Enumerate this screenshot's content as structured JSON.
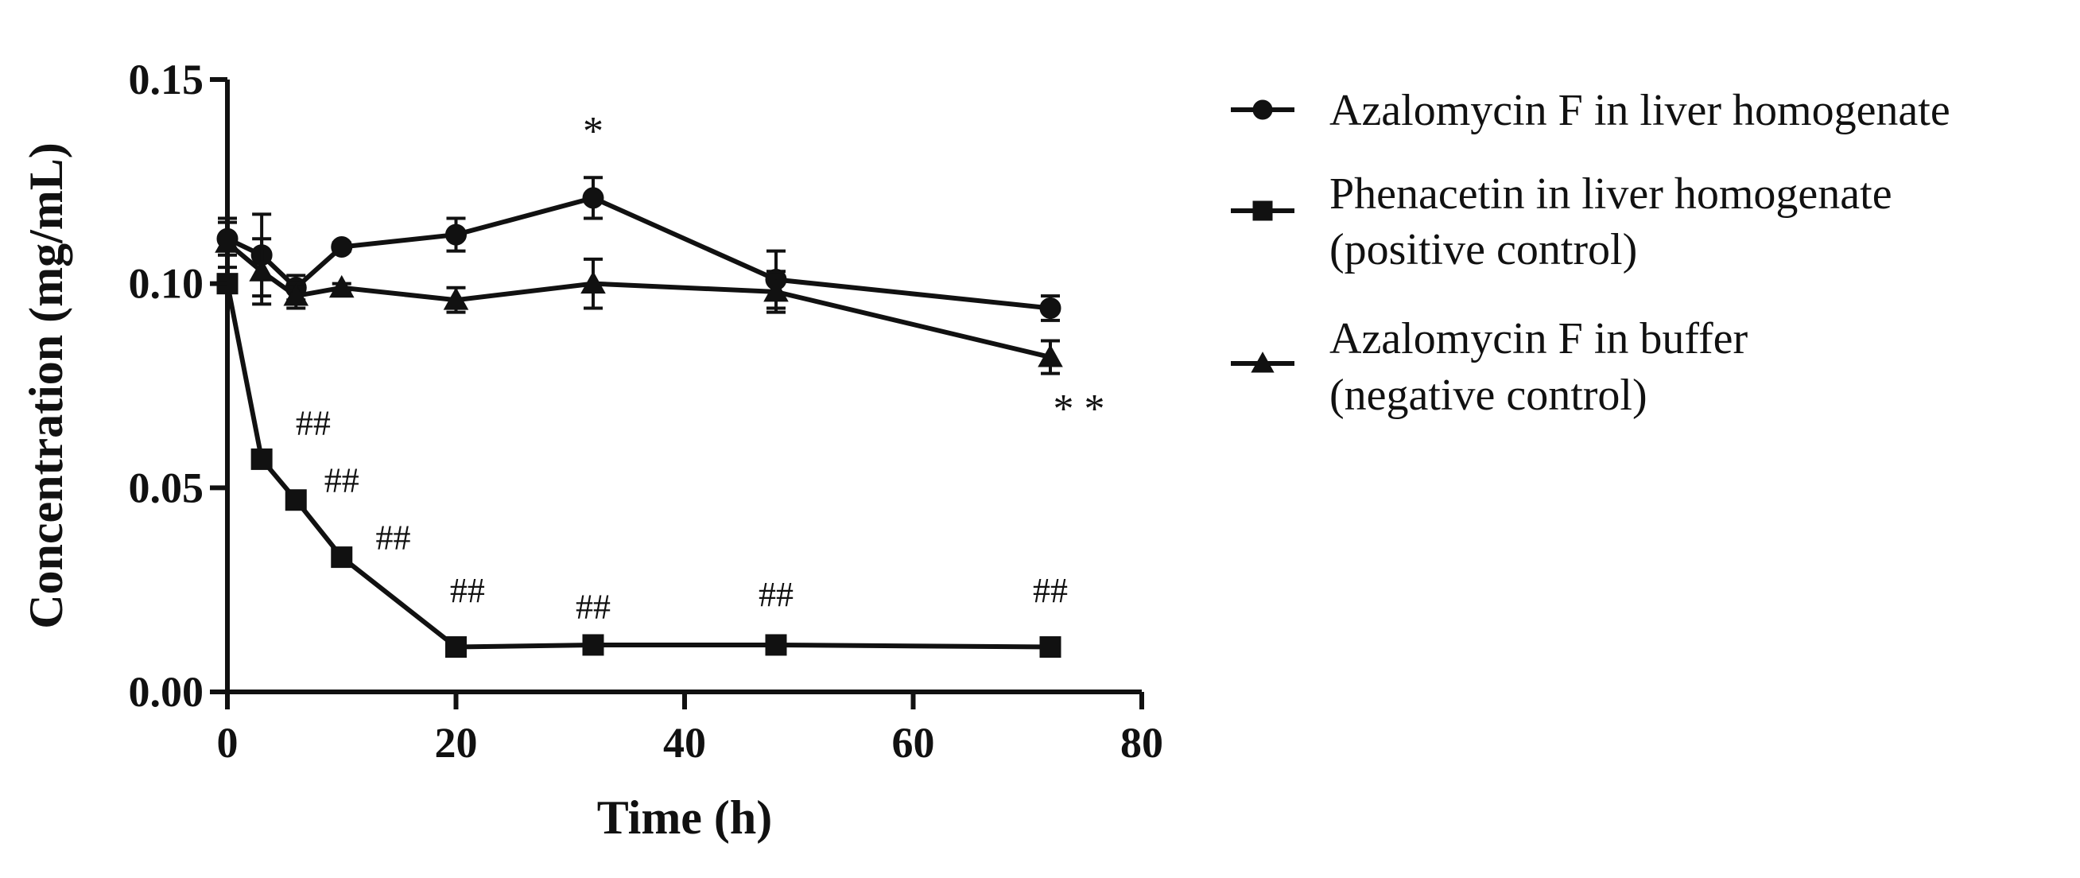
{
  "chart_data": {
    "type": "line",
    "title": "",
    "xlabel": "Time (h)",
    "ylabel": "Concentration (mg/mL)",
    "xlim": [
      0,
      80
    ],
    "ylim": [
      0,
      0.15
    ],
    "xticks": [
      0,
      20,
      40,
      60,
      80
    ],
    "xtick_labels": [
      "0",
      "20",
      "40",
      "60",
      "80"
    ],
    "yticks": [
      0,
      0.05,
      0.1,
      0.15
    ],
    "ytick_labels": [
      "0.00",
      "0.05",
      "0.10",
      "0.15"
    ],
    "grid": false,
    "legend_position": "right",
    "series": [
      {
        "name": "Azalomycin F in liver homogenate",
        "legend_lines": [
          "Azalomycin F in liver homogenate"
        ],
        "marker": "circle",
        "x": [
          0,
          3,
          6,
          10,
          20,
          32,
          48,
          72
        ],
        "values": [
          0.111,
          0.107,
          0.099,
          0.109,
          0.112,
          0.121,
          0.101,
          0.094
        ],
        "errors": [
          0.004,
          0.01,
          0.003,
          0.001,
          0.004,
          0.005,
          0.007,
          0.003
        ]
      },
      {
        "name": "Phenacetin in liver homogenate (positive control)",
        "legend_lines": [
          "Phenacetin in liver homogenate",
          "(positive control)"
        ],
        "marker": "square",
        "x": [
          0,
          3,
          6,
          10,
          20,
          32,
          48,
          72
        ],
        "values": [
          0.1,
          0.057,
          0.047,
          0.033,
          0.011,
          0.0115,
          0.0115,
          0.011
        ],
        "errors": [
          0.0015,
          0.001,
          0.001,
          0.001,
          0.0008,
          0.0008,
          0.0008,
          0.0008
        ]
      },
      {
        "name": "Azalomycin F in buffer (negative control)",
        "legend_lines": [
          "Azalomycin F in buffer",
          "(negative control)"
        ],
        "marker": "triangle",
        "x": [
          0,
          3,
          6,
          10,
          20,
          32,
          48,
          72
        ],
        "values": [
          0.11,
          0.103,
          0.097,
          0.099,
          0.096,
          0.1,
          0.098,
          0.082
        ],
        "errors": [
          0.006,
          0.008,
          0.003,
          0.001,
          0.003,
          0.006,
          0.005,
          0.004
        ]
      }
    ],
    "annotations": [
      {
        "text": "*",
        "x": 32,
        "y": 0.134,
        "kind": "star"
      },
      {
        "text": "* *",
        "x": 74.5,
        "y": 0.066,
        "kind": "star"
      },
      {
        "text": "##",
        "x": 7.5,
        "y": 0.063,
        "kind": "hash"
      },
      {
        "text": "##",
        "x": 10,
        "y": 0.049,
        "kind": "hash"
      },
      {
        "text": "##",
        "x": 14.5,
        "y": 0.035,
        "kind": "hash"
      },
      {
        "text": "##",
        "x": 21,
        "y": 0.022,
        "kind": "hash"
      },
      {
        "text": "##",
        "x": 32,
        "y": 0.018,
        "kind": "hash"
      },
      {
        "text": "##",
        "x": 48,
        "y": 0.021,
        "kind": "hash"
      },
      {
        "text": "##",
        "x": 72,
        "y": 0.022,
        "kind": "hash"
      }
    ]
  }
}
